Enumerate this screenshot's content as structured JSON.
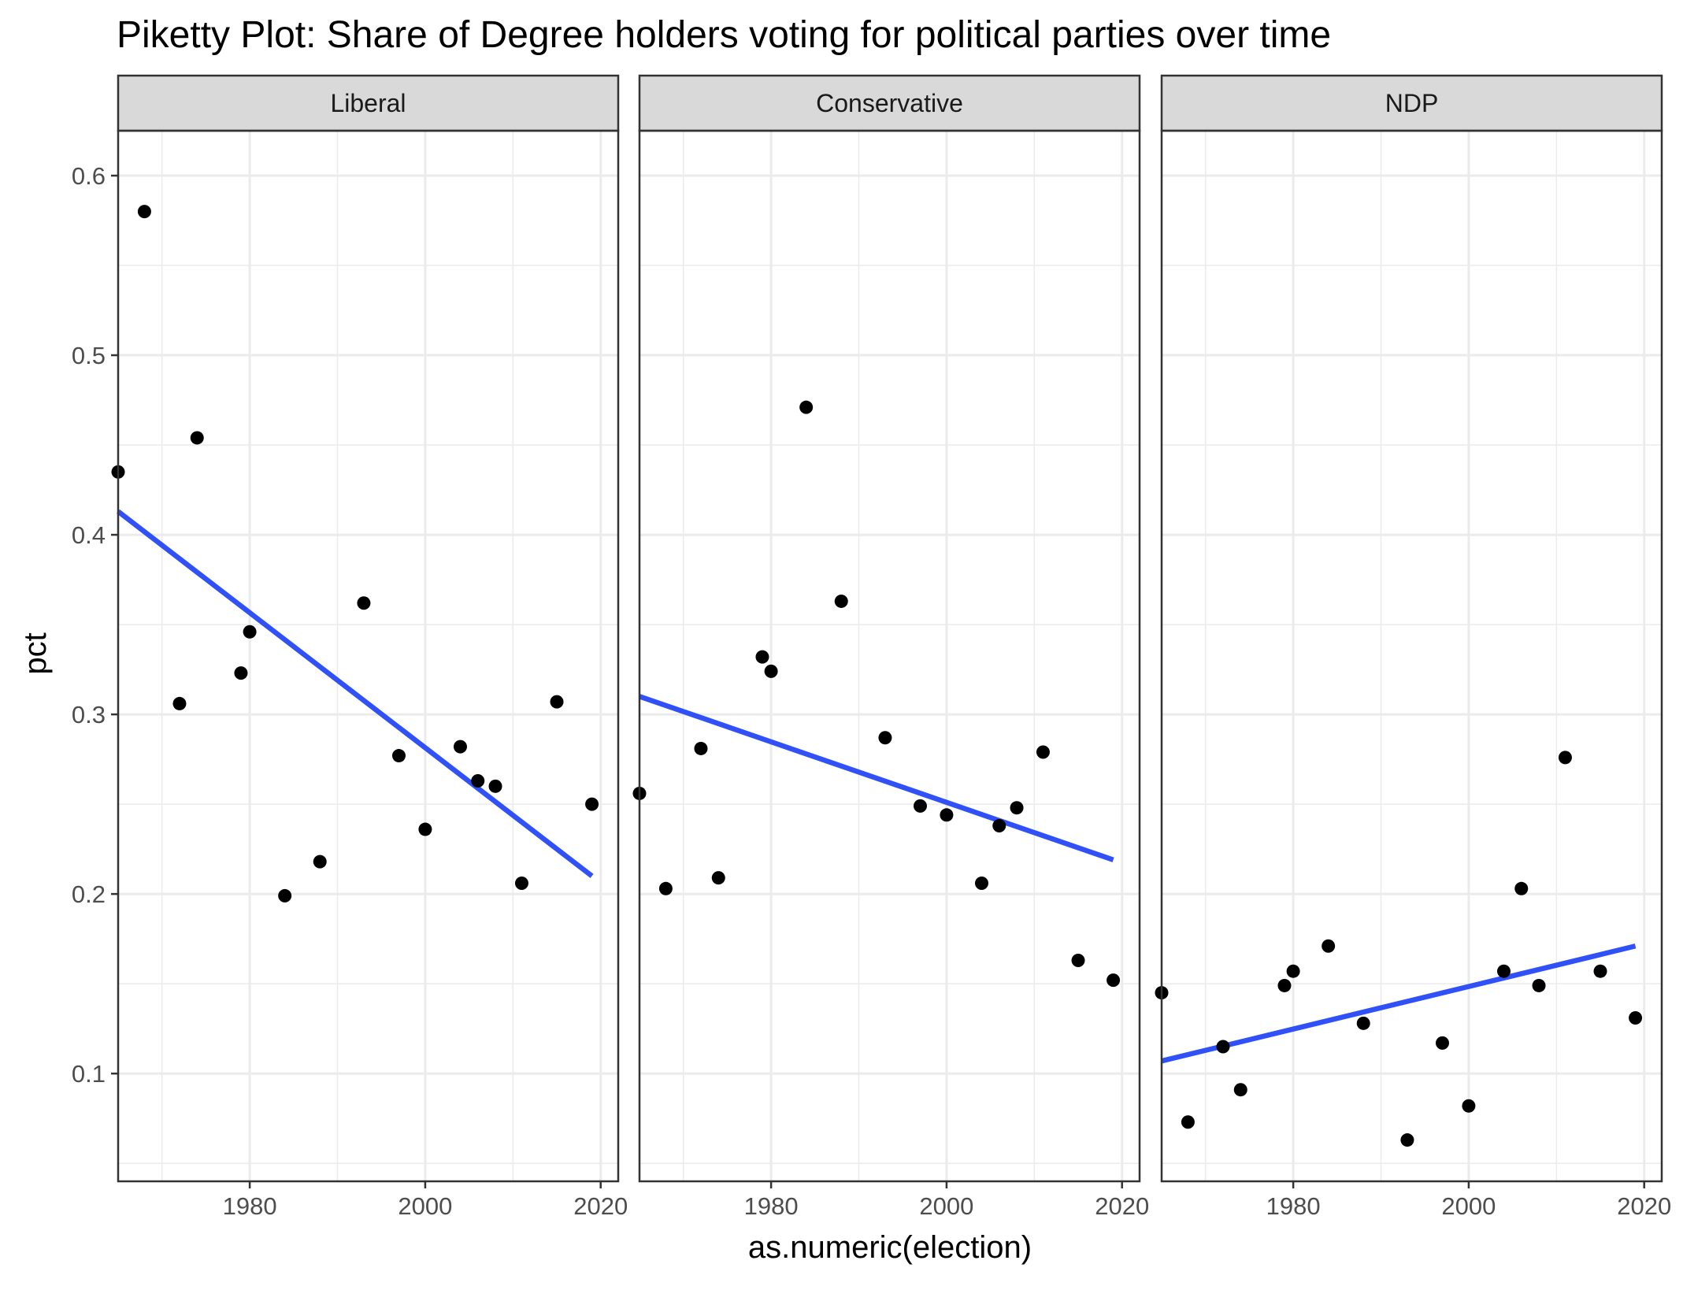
{
  "chart_data": {
    "type": "scatter",
    "title": "Piketty Plot: Share of Degree holders voting for political parties over time",
    "xlabel": "as.numeric(election)",
    "ylabel": "pct",
    "xlim": [
      1965,
      2022
    ],
    "ylim": [
      0.04,
      0.625
    ],
    "x_ticks": [
      1980,
      2000,
      2020
    ],
    "y_ticks": [
      0.1,
      0.2,
      0.3,
      0.4,
      0.5,
      0.6
    ],
    "x_tick_labels": [
      "1980",
      "2000",
      "2020"
    ],
    "y_tick_labels": [
      "0.1",
      "0.2",
      "0.3",
      "0.4",
      "0.5",
      "0.6"
    ],
    "grid": true,
    "point_color": "#000000",
    "trend_color": "#3050f8",
    "panel_border_color": "#333333",
    "strip_fill": "#d9d9d9",
    "grid_color": "#ebebeb",
    "facets": [
      {
        "name": "Liberal",
        "points": [
          {
            "x": 1965,
            "y": 0.435
          },
          {
            "x": 1968,
            "y": 0.58
          },
          {
            "x": 1972,
            "y": 0.306
          },
          {
            "x": 1974,
            "y": 0.454
          },
          {
            "x": 1979,
            "y": 0.323
          },
          {
            "x": 1980,
            "y": 0.346
          },
          {
            "x": 1984,
            "y": 0.199
          },
          {
            "x": 1988,
            "y": 0.218
          },
          {
            "x": 1993,
            "y": 0.362
          },
          {
            "x": 1997,
            "y": 0.277
          },
          {
            "x": 2000,
            "y": 0.236
          },
          {
            "x": 2004,
            "y": 0.282
          },
          {
            "x": 2006,
            "y": 0.263
          },
          {
            "x": 2008,
            "y": 0.26
          },
          {
            "x": 2011,
            "y": 0.206
          },
          {
            "x": 2015,
            "y": 0.307
          },
          {
            "x": 2019,
            "y": 0.25
          }
        ],
        "trend": {
          "x": [
            1965,
            2019
          ],
          "y": [
            0.413,
            0.21
          ]
        }
      },
      {
        "name": "Conservative",
        "points": [
          {
            "x": 1965,
            "y": 0.256
          },
          {
            "x": 1968,
            "y": 0.203
          },
          {
            "x": 1972,
            "y": 0.281
          },
          {
            "x": 1974,
            "y": 0.209
          },
          {
            "x": 1979,
            "y": 0.332
          },
          {
            "x": 1980,
            "y": 0.324
          },
          {
            "x": 1984,
            "y": 0.471
          },
          {
            "x": 1988,
            "y": 0.363
          },
          {
            "x": 1993,
            "y": 0.287
          },
          {
            "x": 1997,
            "y": 0.249
          },
          {
            "x": 2000,
            "y": 0.244
          },
          {
            "x": 2004,
            "y": 0.206
          },
          {
            "x": 2006,
            "y": 0.238
          },
          {
            "x": 2008,
            "y": 0.248
          },
          {
            "x": 2011,
            "y": 0.279
          },
          {
            "x": 2015,
            "y": 0.163
          },
          {
            "x": 2019,
            "y": 0.152
          }
        ],
        "trend": {
          "x": [
            1965,
            2019
          ],
          "y": [
            0.31,
            0.219
          ]
        }
      },
      {
        "name": "NDP",
        "points": [
          {
            "x": 1965,
            "y": 0.145
          },
          {
            "x": 1968,
            "y": 0.073
          },
          {
            "x": 1972,
            "y": 0.115
          },
          {
            "x": 1974,
            "y": 0.091
          },
          {
            "x": 1979,
            "y": 0.149
          },
          {
            "x": 1980,
            "y": 0.157
          },
          {
            "x": 1984,
            "y": 0.171
          },
          {
            "x": 1988,
            "y": 0.128
          },
          {
            "x": 1993,
            "y": 0.063
          },
          {
            "x": 1997,
            "y": 0.117
          },
          {
            "x": 2000,
            "y": 0.082
          },
          {
            "x": 2004,
            "y": 0.157
          },
          {
            "x": 2006,
            "y": 0.203
          },
          {
            "x": 2008,
            "y": 0.149
          },
          {
            "x": 2011,
            "y": 0.276
          },
          {
            "x": 2015,
            "y": 0.157
          },
          {
            "x": 2019,
            "y": 0.131
          }
        ],
        "trend": {
          "x": [
            1965,
            2019
          ],
          "y": [
            0.107,
            0.171
          ]
        }
      }
    ]
  }
}
